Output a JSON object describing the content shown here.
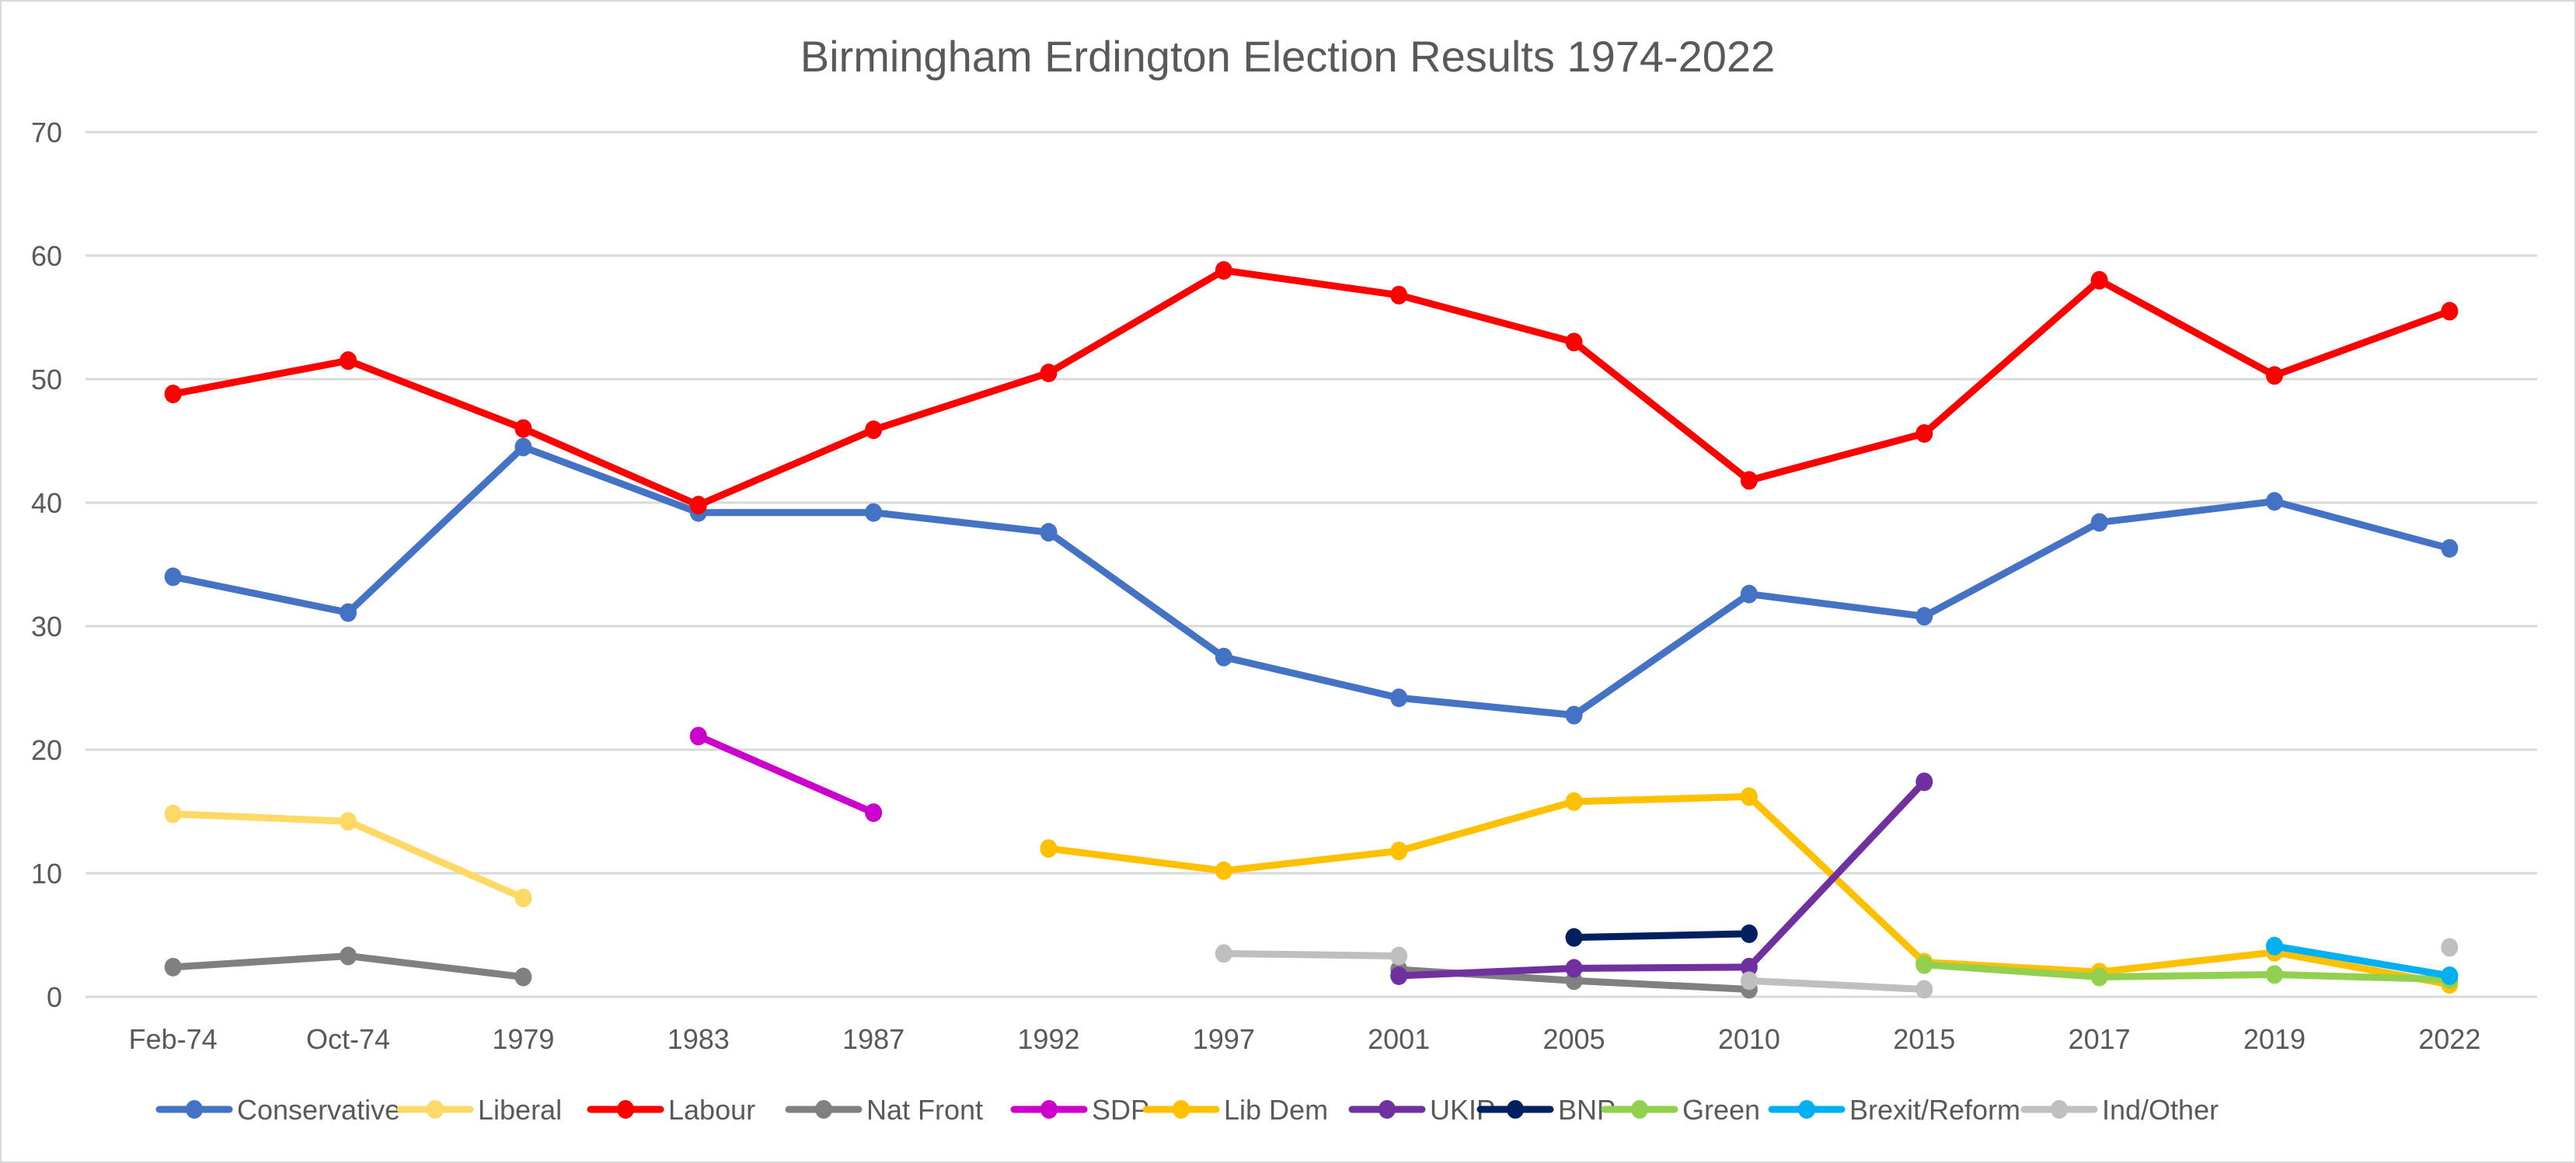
{
  "chart_data": {
    "type": "line",
    "title": "Birmingham Erdington Election Results 1974-2022",
    "xlabel": "",
    "ylabel": "",
    "ylim": [
      0,
      70
    ],
    "yticks": [
      0,
      10,
      20,
      30,
      40,
      50,
      60,
      70
    ],
    "grid": true,
    "legend_position": "bottom",
    "categories": [
      "Feb-74",
      "Oct-74",
      "1979",
      "1983",
      "1987",
      "1992",
      "1997",
      "2001",
      "2005",
      "2010",
      "2015",
      "2017",
      "2019",
      "2022"
    ],
    "series": [
      {
        "name": "Conservative",
        "color": "#4472C4",
        "values": [
          34.0,
          31.1,
          44.5,
          39.2,
          39.2,
          37.6,
          27.5,
          24.2,
          22.8,
          32.6,
          30.8,
          38.4,
          40.1,
          36.3
        ]
      },
      {
        "name": "Liberal",
        "color": "#FFD966",
        "values": [
          14.8,
          14.2,
          8.0,
          null,
          null,
          null,
          null,
          null,
          null,
          null,
          null,
          null,
          null,
          null
        ]
      },
      {
        "name": "Labour",
        "color": "#FF0000",
        "values": [
          48.8,
          51.5,
          46.0,
          39.8,
          45.9,
          50.5,
          58.8,
          56.8,
          53.0,
          41.8,
          45.6,
          58.0,
          50.3,
          55.5
        ]
      },
      {
        "name": "Nat Front",
        "color": "#808080",
        "values": [
          2.4,
          3.3,
          1.6,
          null,
          null,
          null,
          null,
          2.2,
          1.3,
          0.6,
          null,
          null,
          null,
          null
        ]
      },
      {
        "name": "SDP",
        "color": "#CC00CC",
        "values": [
          null,
          null,
          null,
          21.1,
          14.9,
          null,
          null,
          null,
          null,
          null,
          null,
          null,
          null,
          null
        ]
      },
      {
        "name": "Lib Dem",
        "color": "#FFC000",
        "values": [
          null,
          null,
          null,
          null,
          null,
          12.0,
          10.2,
          11.8,
          15.8,
          16.2,
          2.8,
          2.0,
          3.6,
          1.0
        ]
      },
      {
        "name": "UKIP",
        "color": "#7030A0",
        "values": [
          null,
          null,
          null,
          null,
          null,
          null,
          null,
          1.7,
          2.3,
          2.4,
          17.4,
          null,
          null,
          null
        ]
      },
      {
        "name": "BNP",
        "color": "#002060",
        "values": [
          null,
          null,
          null,
          null,
          null,
          null,
          null,
          null,
          4.8,
          5.1,
          null,
          null,
          null,
          null
        ]
      },
      {
        "name": "Green",
        "color": "#92D050",
        "values": [
          null,
          null,
          null,
          null,
          null,
          null,
          null,
          null,
          null,
          null,
          2.6,
          1.6,
          1.8,
          1.4
        ]
      },
      {
        "name": "Brexit/Reform",
        "color": "#00B0F0",
        "values": [
          null,
          null,
          null,
          null,
          null,
          null,
          null,
          null,
          null,
          null,
          null,
          null,
          4.1,
          1.7
        ]
      },
      {
        "name": "Ind/Other",
        "color": "#BFBFBF",
        "values": [
          null,
          null,
          null,
          null,
          null,
          null,
          3.5,
          3.3,
          null,
          1.3,
          0.6,
          null,
          null,
          4.0
        ]
      }
    ]
  }
}
